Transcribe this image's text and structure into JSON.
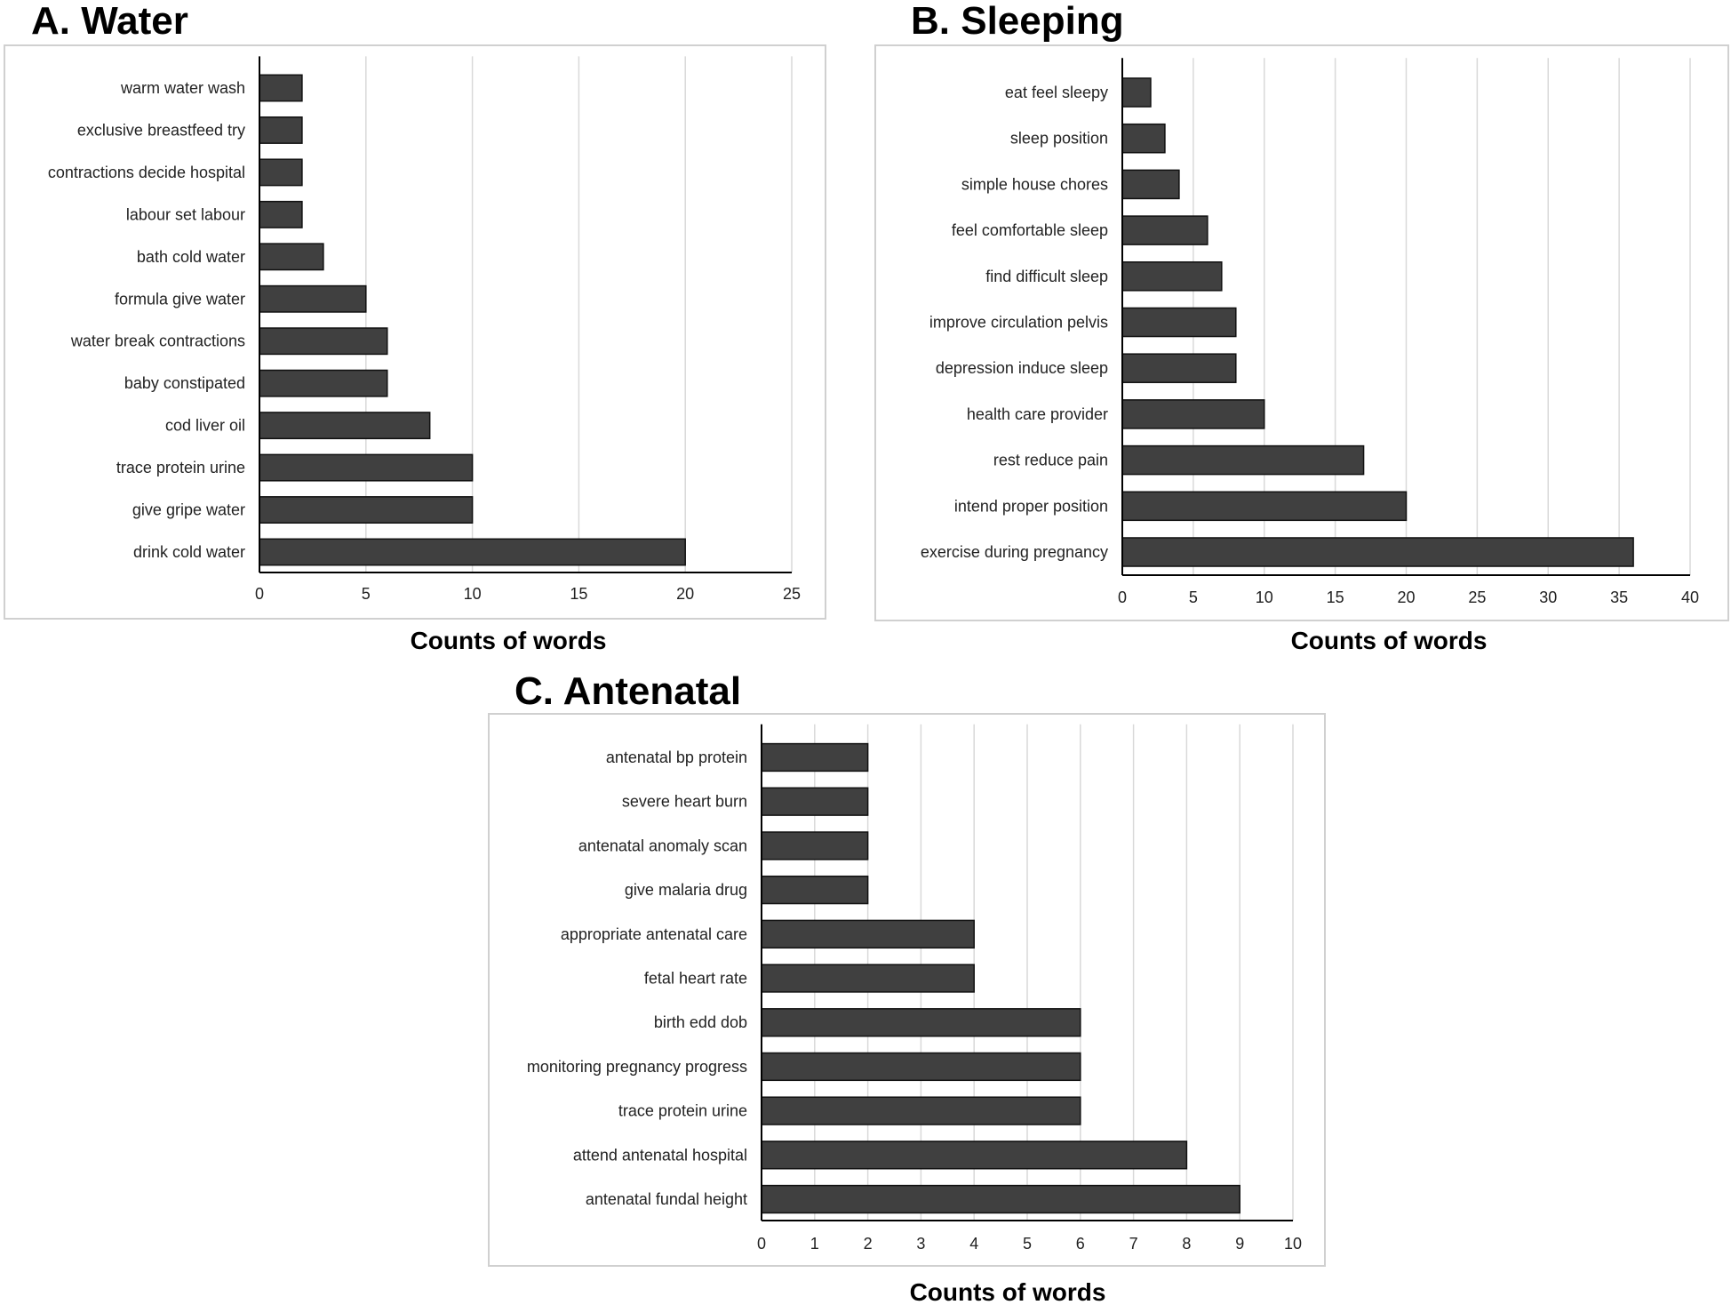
{
  "chart_data": [
    {
      "type": "bar",
      "orientation": "horizontal",
      "title": "A. Water",
      "xlabel": "Counts of words",
      "ylabel": "",
      "xlim": [
        0,
        25
      ],
      "xticks": [
        0,
        5,
        10,
        15,
        20,
        25
      ],
      "grid": true,
      "categories": [
        "warm water wash",
        "exclusive breastfeed try",
        "contractions decide hospital",
        "labour set labour",
        "bath cold water",
        "formula give water",
        "water break contractions",
        "baby constipated",
        "cod liver oil",
        "trace protein urine",
        "give gripe water",
        "drink cold water"
      ],
      "values": [
        2,
        2,
        2,
        2,
        3,
        5,
        6,
        6,
        8,
        10,
        10,
        20
      ],
      "bar_color": "#404040"
    },
    {
      "type": "bar",
      "orientation": "horizontal",
      "title": "B. Sleeping",
      "xlabel": "Counts of words",
      "ylabel": "",
      "xlim": [
        0,
        40
      ],
      "xticks": [
        0,
        5,
        10,
        15,
        20,
        25,
        30,
        35,
        40
      ],
      "grid": true,
      "categories": [
        "eat feel sleepy",
        "sleep position",
        "simple house chores",
        "feel comfortable sleep",
        "find difficult sleep",
        "improve circulation pelvis",
        "depression induce sleep",
        "health care provider",
        "rest reduce pain",
        "intend proper position",
        "exercise during pregnancy"
      ],
      "values": [
        2,
        3,
        4,
        6,
        7,
        8,
        8,
        10,
        17,
        20,
        36
      ],
      "bar_color": "#404040"
    },
    {
      "type": "bar",
      "orientation": "horizontal",
      "title": "C. Antenatal",
      "xlabel": "Counts of words",
      "ylabel": "",
      "xlim": [
        0,
        10
      ],
      "xticks": [
        0,
        1,
        2,
        3,
        4,
        5,
        6,
        7,
        8,
        9,
        10
      ],
      "grid": true,
      "categories": [
        "antenatal bp protein",
        "severe heart burn",
        "antenatal anomaly scan",
        "give malaria drug",
        "appropriate antenatal care",
        "fetal heart rate",
        "birth edd dob",
        "monitoring pregnancy progress",
        "trace protein urine",
        "attend antenatal hospital",
        "antenatal fundal height"
      ],
      "values": [
        2,
        2,
        2,
        2,
        4,
        4,
        6,
        6,
        6,
        8,
        9
      ],
      "bar_color": "#404040"
    }
  ]
}
